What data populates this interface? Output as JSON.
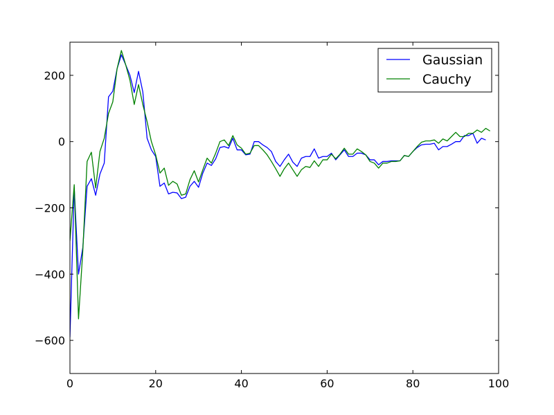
{
  "chart_data": {
    "type": "line",
    "title": "",
    "xlabel": "",
    "ylabel": "",
    "xlim": [
      0,
      100
    ],
    "ylim": [
      -700,
      300
    ],
    "xticks": [
      0,
      20,
      40,
      60,
      80,
      100
    ],
    "yticks": [
      -600,
      -400,
      -200,
      0,
      200
    ],
    "x_tick_labels": [
      "0",
      "20",
      "40",
      "60",
      "80",
      "100"
    ],
    "y_tick_labels": [
      "−600",
      "−400",
      "−200",
      "0",
      "200"
    ],
    "grid": false,
    "legend": {
      "position": "top-right",
      "entries": [
        "Gaussian",
        "Cauchy"
      ]
    },
    "series": [
      {
        "name": "Gaussian",
        "color": "#0000ff",
        "values": [
          -590,
          -140,
          -400,
          -320,
          -135,
          -112,
          -162,
          -98,
          -65,
          135,
          152,
          220,
          262,
          232,
          200,
          148,
          212,
          150,
          10,
          -25,
          -45,
          -135,
          -125,
          -158,
          -153,
          -155,
          -172,
          -168,
          -135,
          -120,
          -138,
          -95,
          -65,
          -72,
          -52,
          -18,
          -15,
          -20,
          10,
          -25,
          -25,
          -40,
          -38,
          0,
          0,
          -10,
          -18,
          -30,
          -60,
          -75,
          -55,
          -38,
          -62,
          -75,
          -50,
          -45,
          -45,
          -22,
          -50,
          -45,
          -45,
          -35,
          -55,
          -40,
          -25,
          -45,
          -45,
          -35,
          -35,
          -40,
          -55,
          -55,
          -70,
          -60,
          -60,
          -58,
          -58,
          -58,
          -42,
          -45,
          -30,
          -18,
          -10,
          -8,
          -8,
          -5,
          -25,
          -15,
          -15,
          -8,
          0,
          0,
          18,
          18,
          25,
          -5,
          10,
          5
        ]
      },
      {
        "name": "Cauchy",
        "color": "#008000",
        "values": [
          -300,
          -130,
          -535,
          -330,
          -60,
          -32,
          -140,
          -30,
          10,
          85,
          120,
          220,
          275,
          232,
          185,
          112,
          172,
          112,
          60,
          0,
          -40,
          -95,
          -80,
          -132,
          -120,
          -128,
          -162,
          -158,
          -115,
          -88,
          -122,
          -85,
          -50,
          -65,
          -35,
          0,
          5,
          -12,
          18,
          -10,
          -20,
          -38,
          -35,
          -12,
          -12,
          -25,
          -40,
          -60,
          -82,
          -105,
          -82,
          -65,
          -85,
          -105,
          -85,
          -75,
          -78,
          -58,
          -75,
          -55,
          -55,
          -38,
          -52,
          -38,
          -20,
          -38,
          -38,
          -22,
          -30,
          -40,
          -60,
          -65,
          -80,
          -65,
          -65,
          -60,
          -60,
          -58,
          -42,
          -45,
          -30,
          -15,
          -2,
          2,
          2,
          5,
          -5,
          8,
          2,
          15,
          28,
          15,
          15,
          25,
          25,
          35,
          28,
          40,
          32
        ]
      }
    ]
  }
}
